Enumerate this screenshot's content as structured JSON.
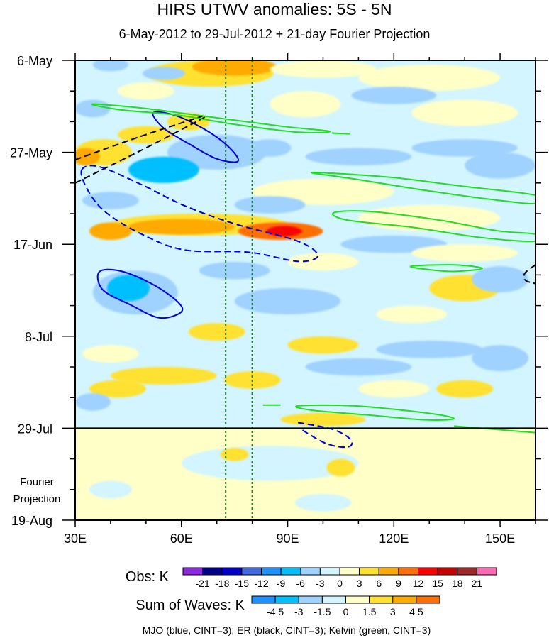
{
  "title": "HIRS UTWV anomalies: 5S - 5N",
  "subtitle": "6-May-2012 to 29-Jul-2012 + 21-day Fourier Projection",
  "chart_data": {
    "type": "heatmap",
    "x_axis": {
      "range": [
        30,
        160
      ],
      "ticks": [
        30,
        60,
        90,
        120,
        150
      ],
      "tick_labels": [
        "30E",
        "60E",
        "90E",
        "120E",
        "150E"
      ]
    },
    "y_axis": {
      "range_days": [
        0,
        105
      ],
      "ticks": [
        0,
        21,
        42,
        63,
        84,
        105
      ],
      "tick_labels": [
        "6-May",
        "27-May",
        "17-Jun",
        "8-Jul",
        "29-Jul",
        "19-Aug"
      ],
      "projection_label": [
        "Fourier",
        "Projection"
      ],
      "obs_end_day": 84
    },
    "reference_lons": [
      72.5,
      80
    ],
    "obs_colorbar": {
      "label": "Obs: K",
      "levels": [
        "-21",
        "-18",
        "-15",
        "-12",
        "-9",
        "-6",
        "-3",
        "0",
        "3",
        "6",
        "9",
        "12",
        "15",
        "18",
        "21"
      ],
      "colors": [
        "#8a2be2",
        "#00008b",
        "#0000cd",
        "#4169e1",
        "#1e90ff",
        "#00bfff",
        "#a0d2ff",
        "#d2f5ff",
        "#ffffc8",
        "#ffe132",
        "#ffaa00",
        "#ff6e00",
        "#ff0000",
        "#c80000",
        "#a02828",
        "#ff69b4"
      ]
    },
    "waves_colorbar": {
      "label": "Sum of Waves: K",
      "levels": [
        "-4.5",
        "-3",
        "-1.5",
        "0",
        "1.5",
        "3",
        "4.5"
      ],
      "colors": [
        "#1e90ff",
        "#00bfff",
        "#a0d2ff",
        "#d2f5ff",
        "#ffffc8",
        "#ffe132",
        "#ffaa00",
        "#ff6e00"
      ]
    },
    "obs_base_value": -1,
    "proj_base_value": 0.5,
    "obs_blobs": [
      [
        68,
        3,
        18,
        3,
        4
      ],
      [
        75,
        1.5,
        12,
        2,
        7
      ],
      [
        40,
        1,
        5,
        1.5,
        -4
      ],
      [
        55,
        3,
        6,
        1.5,
        -4
      ],
      [
        100,
        2,
        15,
        2,
        2
      ],
      [
        130,
        4,
        20,
        3,
        2
      ],
      [
        35,
        11,
        5,
        2,
        -5
      ],
      [
        50,
        7,
        8,
        2,
        1
      ],
      [
        120,
        8,
        12,
        2,
        -4
      ],
      [
        140,
        12,
        15,
        3,
        2
      ],
      [
        95,
        10,
        10,
        3,
        1
      ],
      [
        70,
        21,
        14,
        4,
        -5
      ],
      [
        85,
        20,
        6,
        2,
        -5
      ],
      [
        55,
        25,
        10,
        3,
        -7
      ],
      [
        110,
        22,
        15,
        2,
        -4
      ],
      [
        140,
        20,
        15,
        2,
        -4
      ],
      [
        38,
        21,
        8,
        3,
        5
      ],
      [
        50,
        17,
        8,
        2,
        5
      ],
      [
        62,
        14,
        6,
        2,
        4
      ],
      [
        33,
        22,
        4,
        2,
        8
      ],
      [
        100,
        30,
        20,
        3,
        2
      ],
      [
        150,
        24,
        10,
        3,
        -5
      ],
      [
        40,
        32,
        8,
        2,
        -4
      ],
      [
        85,
        33,
        10,
        2,
        -4
      ],
      [
        65,
        37.5,
        25,
        2.5,
        5
      ],
      [
        60,
        38,
        15,
        1.8,
        7
      ],
      [
        88,
        39,
        12,
        2,
        9
      ],
      [
        89,
        39,
        5,
        1.2,
        12
      ],
      [
        40,
        39,
        6,
        2,
        6
      ],
      [
        130,
        36,
        20,
        3,
        2
      ],
      [
        120,
        42,
        15,
        2,
        -5
      ],
      [
        140,
        44,
        15,
        2,
        2
      ],
      [
        100,
        46,
        10,
        2,
        1
      ],
      [
        47,
        53,
        12,
        5,
        -6
      ],
      [
        45,
        52,
        6,
        3,
        -9
      ],
      [
        75,
        48,
        10,
        2,
        -4
      ],
      [
        90,
        55,
        15,
        3,
        -4
      ],
      [
        140,
        52,
        10,
        3,
        3
      ],
      [
        125,
        58,
        10,
        2,
        2
      ],
      [
        150,
        50,
        8,
        3,
        -5
      ],
      [
        70,
        62,
        8,
        2,
        4
      ],
      [
        100,
        65,
        10,
        2,
        3
      ],
      [
        40,
        67,
        8,
        2,
        2
      ],
      [
        130,
        66,
        15,
        2,
        -4
      ],
      [
        55,
        72,
        15,
        2,
        3
      ],
      [
        42,
        75,
        8,
        2,
        5
      ],
      [
        80,
        73,
        8,
        2,
        3
      ],
      [
        110,
        70,
        15,
        2,
        -5
      ],
      [
        150,
        68,
        8,
        3,
        -6
      ],
      [
        120,
        75,
        10,
        2,
        2
      ],
      [
        35,
        78,
        5,
        2,
        -4
      ],
      [
        100,
        82,
        12,
        1.5,
        4
      ],
      [
        130,
        81,
        15,
        1.5,
        -3
      ],
      [
        65,
        80,
        15,
        2,
        -3
      ],
      [
        140,
        75,
        8,
        2,
        4
      ]
    ],
    "proj_blobs": [
      [
        85,
        92,
        25,
        4,
        -1
      ],
      [
        105,
        93,
        4,
        2,
        2
      ],
      [
        75,
        90,
        4,
        1.5,
        2
      ],
      [
        40,
        98,
        6,
        2,
        -1
      ],
      [
        100,
        101,
        8,
        2,
        -1
      ]
    ],
    "contours": [
      {
        "wave": "MJO",
        "color": "#0000dd",
        "dashed": false,
        "closed": true,
        "points": [
          [
            52,
            12
          ],
          [
            58,
            12.5
          ],
          [
            66,
            15.5
          ],
          [
            73,
            19.5
          ],
          [
            76,
            23
          ],
          [
            70,
            22.5
          ],
          [
            62,
            19
          ],
          [
            55,
            15.5
          ]
        ]
      },
      {
        "wave": "MJO",
        "color": "#0000dd",
        "dashed": true,
        "closed": true,
        "points": [
          [
            31.8,
            25.1
          ],
          [
            36.8,
            24.3
          ],
          [
            48.8,
            28.4
          ],
          [
            60.9,
            33.2
          ],
          [
            74.9,
            37.3
          ],
          [
            92.9,
            41.3
          ],
          [
            98.5,
            44.6
          ],
          [
            92.9,
            45.9
          ],
          [
            78.9,
            43.8
          ],
          [
            60.9,
            43.3
          ],
          [
            48.8,
            39.7
          ],
          [
            38.8,
            34.8
          ],
          [
            33.8,
            30
          ]
        ]
      },
      {
        "wave": "MJO",
        "color": "#0000dd",
        "dashed": false,
        "closed": true,
        "points": [
          [
            36.8,
            48.3
          ],
          [
            42.8,
            48.1
          ],
          [
            51.8,
            51.1
          ],
          [
            58.9,
            55.1
          ],
          [
            59.9,
            57.5
          ],
          [
            53.8,
            58.8
          ],
          [
            45.8,
            55.9
          ],
          [
            37.8,
            52.4
          ]
        ]
      },
      {
        "wave": "MJO",
        "color": "#0000dd",
        "dashed": true,
        "closed": false,
        "points": [
          [
            92.9,
            82.7
          ],
          [
            102.9,
            84.3
          ],
          [
            107.9,
            86.7
          ],
          [
            106.9,
            88.3
          ],
          [
            100.9,
            87.5
          ],
          [
            93.9,
            84.3
          ]
        ]
      },
      {
        "wave": "ER",
        "color": "#000000",
        "dashed": true,
        "closed": false,
        "points": [
          [
            30,
            22.7
          ],
          [
            48,
            17.5
          ],
          [
            66.5,
            12.6
          ]
        ]
      },
      {
        "wave": "ER",
        "color": "#000000",
        "dashed": true,
        "closed": false,
        "points": [
          [
            30,
            28
          ],
          [
            50,
            20
          ],
          [
            67.5,
            12.6
          ]
        ]
      },
      {
        "wave": "ER",
        "color": "#000000",
        "dashed": true,
        "closed": false,
        "points": [
          [
            160,
            46.7
          ],
          [
            157,
            48.6
          ],
          [
            157.1,
            50.2
          ],
          [
            160,
            51
          ]
        ]
      },
      {
        "wave": "Kelvin",
        "color": "#22dd22",
        "dashed": false,
        "closed": true,
        "points": [
          [
            34.8,
            10
          ],
          [
            48.8,
            10.9
          ],
          [
            68.9,
            13
          ],
          [
            88.9,
            15.1
          ],
          [
            101.9,
            16.2
          ],
          [
            92.9,
            16.4
          ],
          [
            74.9,
            14.6
          ],
          [
            58.9,
            12.5
          ],
          [
            42.8,
            11.3
          ]
        ]
      },
      {
        "wave": "Kelvin",
        "color": "#22dd22",
        "dashed": false,
        "closed": false,
        "points": [
          [
            102.5,
            16.6
          ],
          [
            107.5,
            16.8
          ]
        ]
      },
      {
        "wave": "Kelvin",
        "color": "#22dd22",
        "dashed": false,
        "closed": true,
        "points": [
          [
            96.9,
            25.6
          ],
          [
            119,
            26.7
          ],
          [
            139,
            28.7
          ],
          [
            160,
            30.8
          ],
          [
            160,
            32.7
          ],
          [
            149,
            31.9
          ],
          [
            129,
            29.7
          ],
          [
            109,
            27.1
          ]
        ]
      },
      {
        "wave": "Kelvin",
        "color": "#22dd22",
        "dashed": false,
        "closed": true,
        "points": [
          [
            103,
            34.8
          ],
          [
            113,
            34.5
          ],
          [
            133,
            36.5
          ],
          [
            149,
            38.9
          ],
          [
            160,
            39.7
          ],
          [
            160,
            41.3
          ],
          [
            145,
            40.5
          ],
          [
            125,
            38.1
          ],
          [
            107,
            36.5
          ]
        ]
      },
      {
        "wave": "Kelvin",
        "color": "#22dd22",
        "dashed": false,
        "closed": true,
        "points": [
          [
            125,
            47
          ],
          [
            137,
            46.7
          ],
          [
            145,
            47.5
          ],
          [
            137,
            48.2
          ],
          [
            129,
            47.7
          ]
        ]
      },
      {
        "wave": "Kelvin",
        "color": "#22dd22",
        "dashed": false,
        "closed": true,
        "points": [
          [
            93,
            78.9
          ],
          [
            109,
            78.9
          ],
          [
            129,
            80.5
          ],
          [
            137,
            81.8
          ],
          [
            129,
            82.1
          ],
          [
            113,
            81
          ],
          [
            97,
            79.9
          ]
        ]
      },
      {
        "wave": "Kelvin",
        "color": "#22dd22",
        "dashed": false,
        "closed": false,
        "points": [
          [
            83,
            78.7
          ],
          [
            88,
            78.7
          ]
        ]
      },
      {
        "wave": "Kelvin",
        "color": "#22dd22",
        "dashed": false,
        "closed": false,
        "points": [
          [
            137,
            83.5
          ],
          [
            160,
            85
          ]
        ]
      }
    ],
    "legend_note": "MJO (blue, CINT=3); ER (black, CINT=3); Kelvin (green, CINT=3)"
  }
}
